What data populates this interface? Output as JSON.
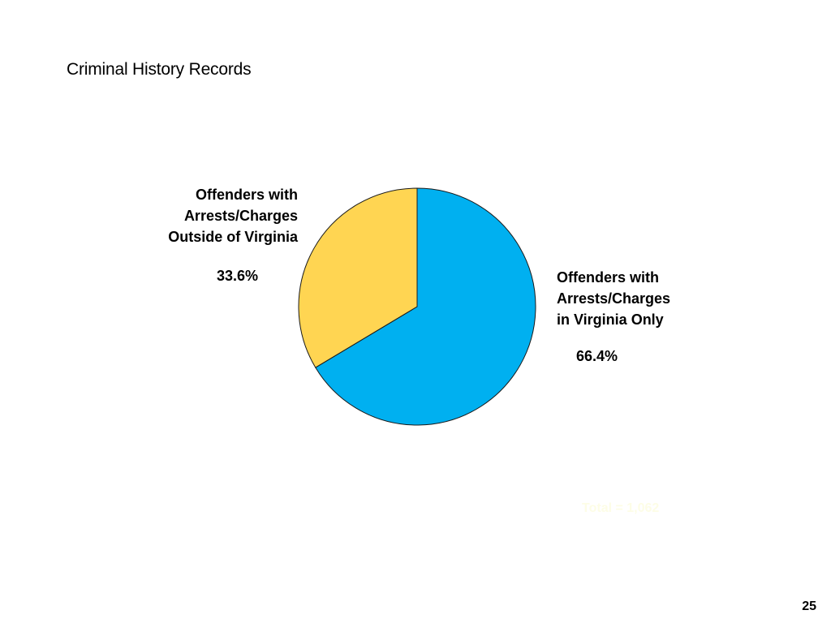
{
  "slide": {
    "title": "Criminal History Records",
    "page_number": "25",
    "total_note": "Total = 1,062"
  },
  "chart_data": {
    "type": "pie",
    "title": "",
    "slices": [
      {
        "label": "Offenders with Arrests/Charges in Virginia Only",
        "label_lines": [
          "Offenders with",
          "Arrests/Charges",
          "in Virginia Only"
        ],
        "value": 66.4,
        "value_label": "66.4%",
        "color": "#00b0f0"
      },
      {
        "label": "Offenders with Arrests/Charges Outside of Virginia",
        "label_lines": [
          "Offenders with",
          "Arrests/Charges",
          "Outside of Virginia"
        ],
        "value": 33.6,
        "value_label": "33.6%",
        "color": "#ffd552"
      }
    ],
    "start_angle_deg": 0,
    "direction": "clockwise",
    "legend": "none"
  }
}
